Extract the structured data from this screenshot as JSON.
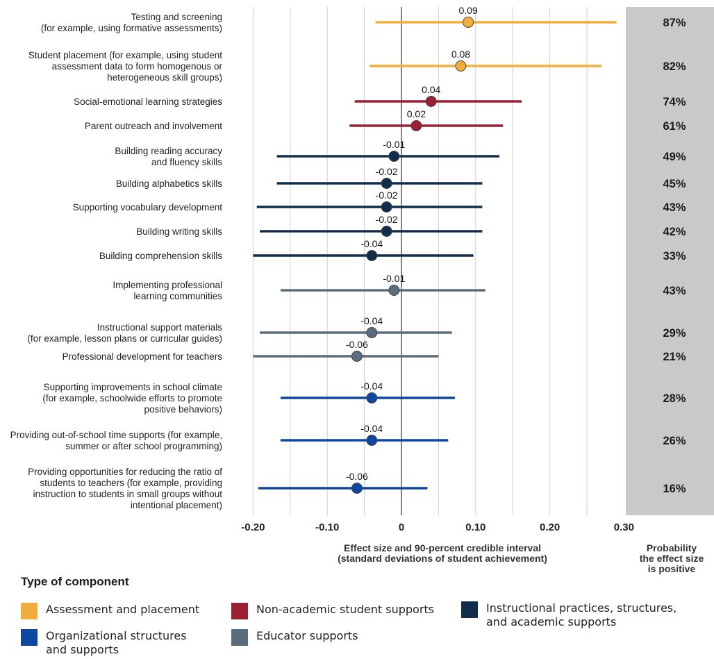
{
  "chart_data": {
    "type": "forest",
    "xlabel": "Effect size and 90-percent credible interval\n(standard deviations of student achievement)",
    "prob_header": "Probability\nthe effect size\nis positive",
    "xlim": [
      -0.25,
      0.3
    ],
    "xticks": [
      -0.2,
      -0.1,
      0,
      0.1,
      0.2,
      0.3
    ],
    "xtick_labels": [
      "-0.20",
      "-0.10",
      "0",
      "0.10",
      "0.20",
      "0.30"
    ],
    "grid": true,
    "categories": [
      {
        "key": "assessment",
        "name": "Assessment and placement",
        "color": "#f2ae3d"
      },
      {
        "key": "nonacademic",
        "name": "Non-academic student supports",
        "color": "#9a1f35"
      },
      {
        "key": "instructional",
        "name": "Instructional practices, structures,\nand academic supports",
        "color": "#122d4c"
      },
      {
        "key": "organizational",
        "name": "Organizational structures\nand supports",
        "color": "#0d47a1"
      },
      {
        "key": "educator",
        "name": "Educator supports",
        "color": "#5b6d7c"
      }
    ],
    "rows": [
      {
        "label": "Testing and screening\n(for example, using formative assessments)",
        "category": "assessment",
        "estimate": 0.09,
        "estimate_label": "0.09",
        "ci": [
          -0.035,
          0.29
        ],
        "prob": "87%"
      },
      {
        "label": "Student placement (for example, using student\nassessment data to form homogenous or\nheterogeneous skill groups)",
        "category": "assessment",
        "estimate": 0.08,
        "estimate_label": "0.08",
        "ci": [
          -0.043,
          0.27
        ],
        "prob": "82%"
      },
      {
        "label": "Social-emotional learning strategies",
        "category": "nonacademic",
        "estimate": 0.04,
        "estimate_label": "0.04",
        "ci": [
          -0.063,
          0.162
        ],
        "prob": "74%"
      },
      {
        "label": "Parent outreach and involvement",
        "category": "nonacademic",
        "estimate": 0.02,
        "estimate_label": "0.02",
        "ci": [
          -0.07,
          0.137
        ],
        "prob": "61%"
      },
      {
        "label": "Building reading accuracy\nand fluency skills",
        "category": "instructional",
        "estimate": -0.01,
        "estimate_label": "-0.01",
        "ci": [
          -0.168,
          0.132
        ],
        "prob": "49%"
      },
      {
        "label": "Building alphabetics skills",
        "category": "instructional",
        "estimate": -0.02,
        "estimate_label": "-0.02",
        "ci": [
          -0.168,
          0.109
        ],
        "prob": "45%"
      },
      {
        "label": "Supporting vocabulary development",
        "category": "instructional",
        "estimate": -0.02,
        "estimate_label": "-0.02",
        "ci": [
          -0.195,
          0.109
        ],
        "prob": "43%"
      },
      {
        "label": "Building writing skills",
        "category": "instructional",
        "estimate": -0.02,
        "estimate_label": "-0.02",
        "ci": [
          -0.191,
          0.109
        ],
        "prob": "42%"
      },
      {
        "label": "Building comprehension skills",
        "category": "instructional",
        "estimate": -0.04,
        "estimate_label": "-0.04",
        "ci": [
          -0.2,
          0.097
        ],
        "prob": "33%"
      },
      {
        "label": "Implementing professional\nlearning communities",
        "category": "educator",
        "estimate": -0.01,
        "estimate_label": "-0.01",
        "ci": [
          -0.163,
          0.113
        ],
        "prob": "43%"
      },
      {
        "label": "Instructional support materials\n(for example, lesson plans or curricular guides)",
        "category": "educator",
        "estimate": -0.04,
        "estimate_label": "-0.04",
        "ci": [
          -0.191,
          0.068
        ],
        "prob": "29%"
      },
      {
        "label": "Professional development for teachers",
        "category": "educator",
        "estimate": -0.06,
        "estimate_label": "-0.06",
        "ci": [
          -0.2,
          0.05
        ],
        "prob": "21%"
      },
      {
        "label": "Supporting improvements in school climate\n(for example, schoolwide efforts to promote\npositive behaviors)",
        "category": "organizational",
        "estimate": -0.04,
        "estimate_label": "-0.04",
        "ci": [
          -0.163,
          0.072
        ],
        "prob": "28%"
      },
      {
        "label": "Providing out-of-school time supports (for example,\nsummer or after school programming)",
        "category": "organizational",
        "estimate": -0.04,
        "estimate_label": "-0.04",
        "ci": [
          -0.163,
          0.063
        ],
        "prob": "26%"
      },
      {
        "label": "Providing opportunities for reducing the ratio of\nstudents to teachers (for example, providing\ninstruction to students in small groups without\nintentional placement)",
        "category": "organizational",
        "estimate": -0.06,
        "estimate_label": "-0.06",
        "ci": [
          -0.193,
          0.035
        ],
        "prob": "16%"
      }
    ]
  },
  "legend": {
    "title": "Type of component",
    "items": [
      {
        "label": "Assessment and placement",
        "color": "#f2ae3d"
      },
      {
        "label": "Non-academic student supports",
        "color": "#9a1f35"
      },
      {
        "label": "Instructional practices, structures,\nand academic supports",
        "color": "#122d4c"
      },
      {
        "label": "Organizational structures\nand supports",
        "color": "#0d47a1"
      },
      {
        "label": "Educator supports",
        "color": "#5b6d7c"
      }
    ]
  }
}
